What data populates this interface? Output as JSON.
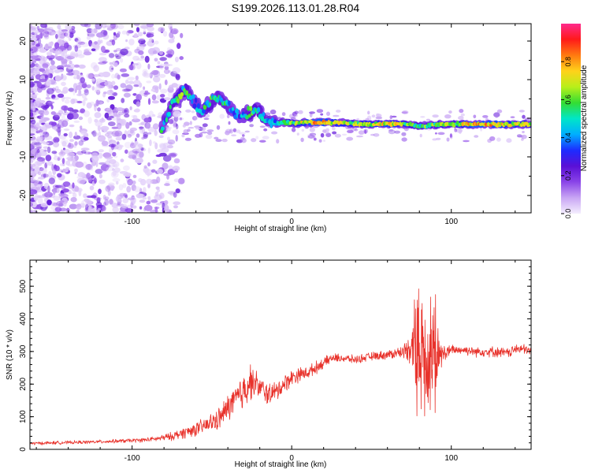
{
  "title": "S199.2026.113.01.28.R04",
  "colors": {
    "line": "#e8322b",
    "background": "#ffffff",
    "axis": "#000000",
    "cmap": [
      "#f4eefe",
      "#c9a6f4",
      "#8a44e8",
      "#5a10d6",
      "#1d2bff",
      "#00aeff",
      "#00e6c8",
      "#33dd33",
      "#b8ef1a",
      "#ffd21a",
      "#ff7a10",
      "#ff1a1a",
      "#ff2a8c"
    ]
  },
  "chart_data": [
    {
      "type": "heatmap",
      "name": "spectrogram",
      "xlabel": "Height of straight line (km)",
      "ylabel": "Frequency (Hz)",
      "xlim": [
        -164,
        150
      ],
      "ylim": [
        -24.5,
        24.5
      ],
      "xticks": [
        {
          "v": -100,
          "label": "-100"
        },
        {
          "v": 0,
          "label": "0"
        },
        {
          "v": 100,
          "label": "100"
        }
      ],
      "yticks": [
        {
          "v": -20,
          "label": "-20"
        },
        {
          "v": -10,
          "label": "-10"
        },
        {
          "v": 0,
          "label": "0"
        },
        {
          "v": 10,
          "label": "10"
        },
        {
          "v": 20,
          "label": "20"
        }
      ],
      "colorbar": {
        "label": "Normalized spectral amplitude",
        "range": [
          0,
          1
        ],
        "ticks": [
          {
            "v": 0.0,
            "label": "0.0"
          },
          {
            "v": 0.2,
            "label": "0.2"
          },
          {
            "v": 0.4,
            "label": "0.4"
          },
          {
            "v": 0.6,
            "label": "0.6"
          },
          {
            "v": 0.8,
            "label": "0.8"
          }
        ]
      },
      "ridge": [
        {
          "x": -82,
          "f": -2.5,
          "a": 0.45
        },
        {
          "x": -78,
          "f": 0.5,
          "a": 0.4
        },
        {
          "x": -75,
          "f": 3.5,
          "a": 0.5
        },
        {
          "x": -71,
          "f": 5.5,
          "a": 0.55
        },
        {
          "x": -66,
          "f": 7.5,
          "a": 0.5
        },
        {
          "x": -62,
          "f": 5.0,
          "a": 0.4
        },
        {
          "x": -57,
          "f": 2.0,
          "a": 0.4
        },
        {
          "x": -52,
          "f": 3.5,
          "a": 0.5
        },
        {
          "x": -47,
          "f": 5.5,
          "a": 0.45
        },
        {
          "x": -42,
          "f": 4.5,
          "a": 0.45
        },
        {
          "x": -37,
          "f": 1.5,
          "a": 0.4
        },
        {
          "x": -32,
          "f": 0.5,
          "a": 0.35
        },
        {
          "x": -27,
          "f": 1.5,
          "a": 0.5
        },
        {
          "x": -22,
          "f": 2.0,
          "a": 0.5
        },
        {
          "x": -17,
          "f": 0.5,
          "a": 0.45
        },
        {
          "x": -12,
          "f": -1.5,
          "a": 0.4
        },
        {
          "x": -6,
          "f": -1.0,
          "a": 0.45
        },
        {
          "x": 2,
          "f": -1.3,
          "a": 0.6
        },
        {
          "x": 15,
          "f": -1.0,
          "a": 0.75
        },
        {
          "x": 30,
          "f": -1.2,
          "a": 0.65
        },
        {
          "x": 45,
          "f": -1.5,
          "a": 0.6
        },
        {
          "x": 60,
          "f": -1.5,
          "a": 0.7
        },
        {
          "x": 70,
          "f": -1.5,
          "a": 0.6
        },
        {
          "x": 80,
          "f": -2.0,
          "a": 0.5
        },
        {
          "x": 92,
          "f": -1.6,
          "a": 0.6
        },
        {
          "x": 100,
          "f": -1.5,
          "a": 0.55
        },
        {
          "x": 115,
          "f": -1.6,
          "a": 0.75
        },
        {
          "x": 130,
          "f": -1.6,
          "a": 0.7
        },
        {
          "x": 150,
          "f": -1.6,
          "a": 0.6
        }
      ]
    },
    {
      "type": "line",
      "name": "snr",
      "xlabel": "Height of straight line (km)",
      "ylabel": "SNR (10 * v/v)",
      "xlim": [
        -164,
        150
      ],
      "ylim": [
        0,
        580
      ],
      "xticks": [
        {
          "v": -100,
          "label": "-100"
        },
        {
          "v": 0,
          "label": "0"
        },
        {
          "v": 100,
          "label": "100"
        }
      ],
      "yticks": [
        {
          "v": 0,
          "label": "0"
        },
        {
          "v": 100,
          "label": "100"
        },
        {
          "v": 200,
          "label": "200"
        },
        {
          "v": 300,
          "label": "300"
        },
        {
          "v": 400,
          "label": "400"
        },
        {
          "v": 500,
          "label": "500"
        }
      ],
      "series": [
        {
          "name": "SNR",
          "x": [
            -164,
            -150,
            -130,
            -110,
            -95,
            -85,
            -75,
            -65,
            -55,
            -45,
            -38,
            -32,
            -28,
            -25,
            -20,
            -15,
            -10,
            -5,
            0,
            5,
            10,
            15,
            20,
            25,
            30,
            40,
            50,
            60,
            70,
            75,
            78,
            82,
            86,
            90,
            94,
            98,
            102,
            108,
            115,
            125,
            135,
            142,
            150
          ],
          "y": [
            18,
            20,
            22,
            25,
            28,
            32,
            40,
            55,
            70,
            95,
            140,
            165,
            200,
            210,
            190,
            170,
            175,
            200,
            220,
            230,
            235,
            250,
            265,
            280,
            280,
            275,
            285,
            290,
            300,
            320,
            300,
            300,
            280,
            290,
            290,
            300,
            305,
            305,
            300,
            300,
            295,
            310,
            300
          ],
          "noise": [
            8,
            8,
            8,
            9,
            10,
            12,
            20,
            30,
            38,
            55,
            70,
            90,
            110,
            80,
            55,
            55,
            50,
            45,
            40,
            35,
            30,
            30,
            25,
            22,
            20,
            20,
            20,
            22,
            30,
            90,
            220,
            240,
            230,
            180,
            60,
            30,
            25,
            22,
            25,
            25,
            25,
            25,
            25
          ]
        }
      ]
    }
  ]
}
